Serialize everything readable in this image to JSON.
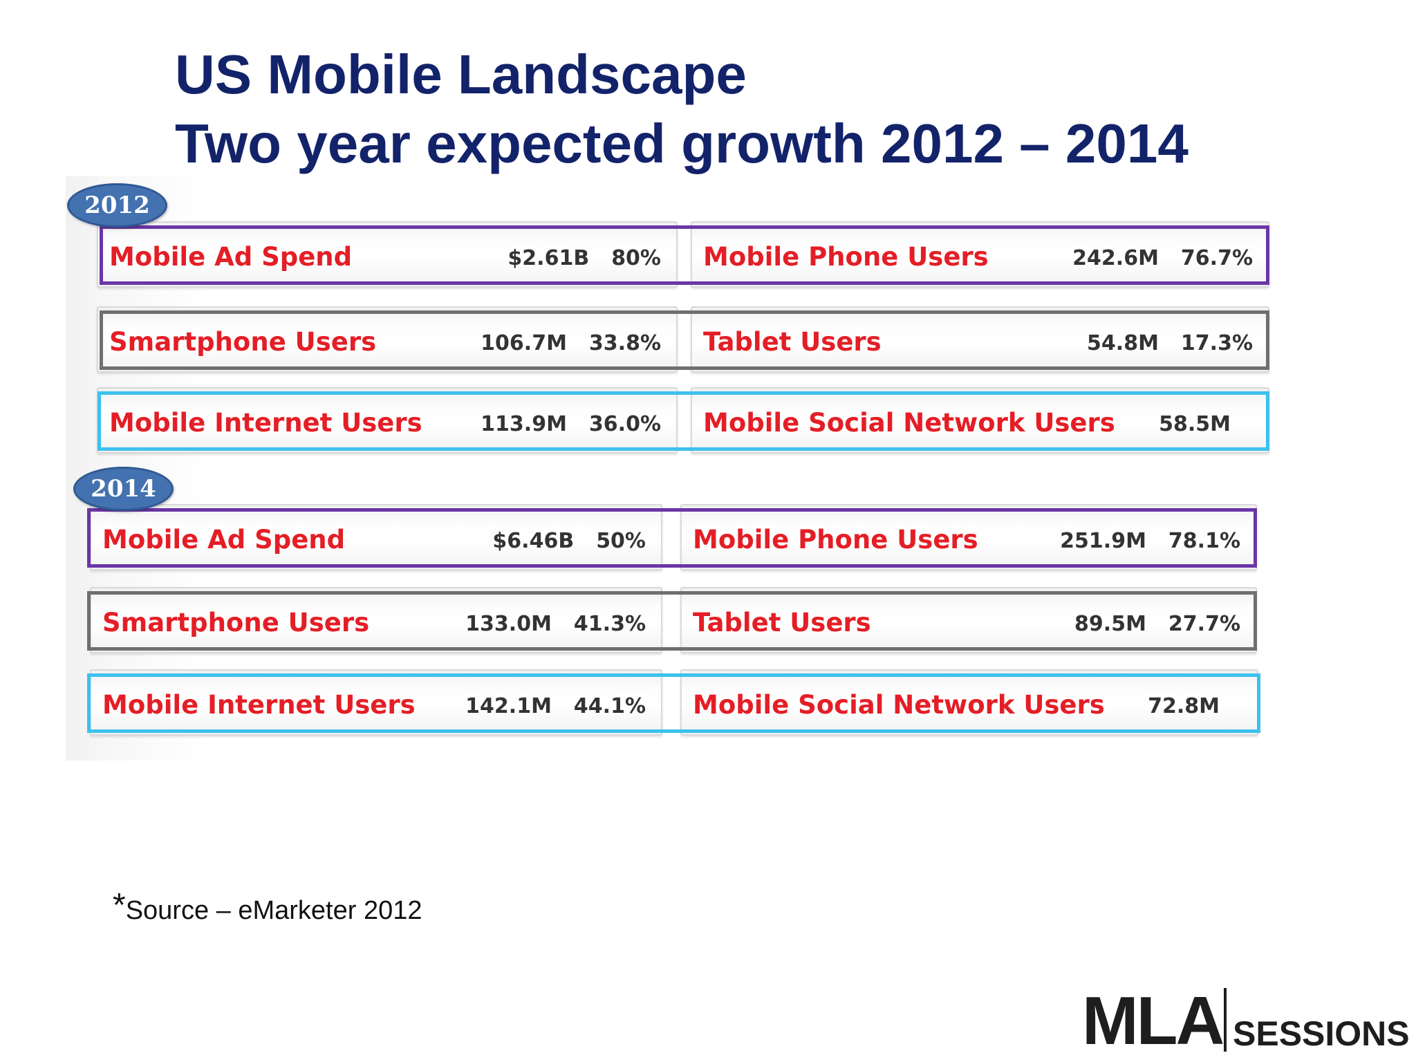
{
  "slide": {
    "title_line1": "US Mobile Landscape",
    "title_line2": "Two year expected growth 2012 – 2014"
  },
  "years": [
    {
      "year": "2012",
      "rows": [
        {
          "frame_color": "#6a36a6",
          "left": {
            "label": "Mobile Ad Spend",
            "value": "$2.61B",
            "pct": "80%"
          },
          "right": {
            "label": "Mobile Phone Users",
            "value": "242.6M",
            "pct": "76.7%"
          }
        },
        {
          "frame_color": "#6f6f6f",
          "left": {
            "label": "Smartphone Users",
            "value": "106.7M",
            "pct": "33.8%"
          },
          "right": {
            "label": "Tablet Users",
            "value": "54.8M",
            "pct": "17.3%"
          }
        },
        {
          "frame_color": "#3cc1ee",
          "left": {
            "label": "Mobile Internet Users",
            "value": "113.9M",
            "pct": "36.0%"
          },
          "right": {
            "label": "Mobile Social Network Users",
            "value": "58.5M",
            "pct": ""
          }
        }
      ]
    },
    {
      "year": "2014",
      "rows": [
        {
          "frame_color": "#6a36a6",
          "left": {
            "label": "Mobile Ad Spend",
            "value": "$6.46B",
            "pct": "50%"
          },
          "right": {
            "label": "Mobile Phone Users",
            "value": "251.9M",
            "pct": "78.1%"
          }
        },
        {
          "frame_color": "#6f6f6f",
          "left": {
            "label": "Smartphone Users",
            "value": "133.0M",
            "pct": "41.3%"
          },
          "right": {
            "label": "Tablet Users",
            "value": "89.5M",
            "pct": "27.7%"
          }
        },
        {
          "frame_color": "#3cc1ee",
          "left": {
            "label": "Mobile Internet Users",
            "value": "142.1M",
            "pct": "44.1%"
          },
          "right": {
            "label": "Mobile Social Network Users",
            "value": "72.8M",
            "pct": ""
          }
        }
      ]
    }
  ],
  "footer": {
    "source_asterisk": "*",
    "source_text": "Source – eMarketer 2012"
  },
  "logo": {
    "brand": "MLA",
    "sessions": "SESSIONS"
  },
  "colors": {
    "title": "#13236a",
    "label": "#e41e26",
    "badge": "#4472b0"
  }
}
